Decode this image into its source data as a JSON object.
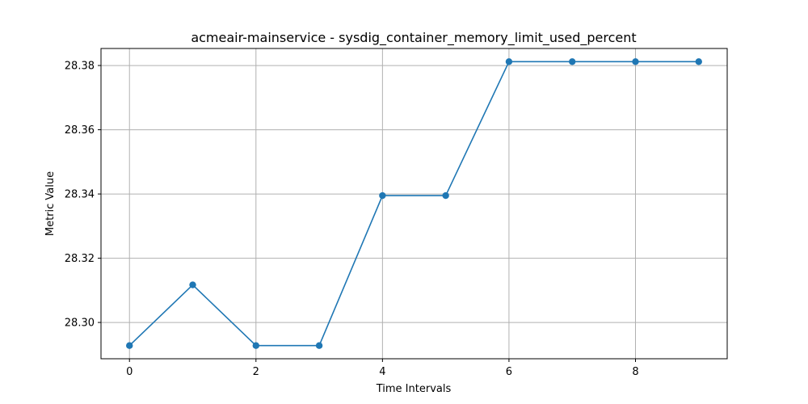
{
  "chart_data": {
    "type": "line",
    "title": "acmeair-mainservice - sysdig_container_memory_limit_used_percent",
    "xlabel": "Time Intervals",
    "ylabel": "Metric Value",
    "x": [
      0,
      1,
      2,
      3,
      4,
      5,
      6,
      7,
      8,
      9
    ],
    "series": [
      {
        "values": [
          28.2928,
          28.3117,
          28.2928,
          28.2928,
          28.3395,
          28.3395,
          28.3812,
          28.3812,
          28.3812,
          28.3812
        ],
        "color": "#1f77b4"
      }
    ],
    "xlim": [
      -0.45,
      9.45
    ],
    "ylim": [
      28.2887,
      28.3853
    ],
    "xticks": [
      0,
      2,
      4,
      6,
      8
    ],
    "yticks": [
      28.3,
      28.32,
      28.34,
      28.36,
      28.38
    ],
    "ytick_labels": [
      "28.30",
      "28.32",
      "28.34",
      "28.36",
      "28.38"
    ],
    "grid": true,
    "legend": "none"
  }
}
